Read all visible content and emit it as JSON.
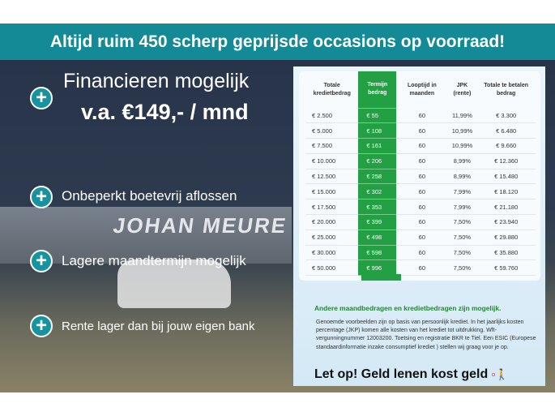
{
  "banner": "Altijd ruim 450 scherp geprijsde occasions op voorraad!",
  "headline": {
    "line1": "Financieren mogelijk",
    "line2": "v.a. €149,- / mnd"
  },
  "benefits": [
    "Onbeperkt boetevrij aflossen",
    "Lagere maandtermijn mogelijk",
    "Rente lager dan bij jouw eigen bank"
  ],
  "photo_sign": "JOHAN MEURE",
  "table": {
    "headers": [
      "Totale kredietbedrag",
      "Termijn bedrag",
      "Looptijd in maanden",
      "JPK (rente)",
      "Totale te betalen bedrag"
    ],
    "rows": [
      [
        "€ 2.500",
        "€ 55",
        "60",
        "11,99%",
        "€ 3.300"
      ],
      [
        "€ 5.000",
        "€ 108",
        "60",
        "10,99%",
        "€ 6.480"
      ],
      [
        "€ 7.500",
        "€ 161",
        "60",
        "10,99%",
        "€ 9.660"
      ],
      [
        "€ 10.000",
        "€ 206",
        "60",
        "8,99%",
        "€ 12.360"
      ],
      [
        "€ 12.500",
        "€ 258",
        "60",
        "8,99%",
        "€ 15.480"
      ],
      [
        "€ 15.000",
        "€ 302",
        "60",
        "7,99%",
        "€ 18.120"
      ],
      [
        "€ 17.500",
        "€ 353",
        "60",
        "7,99%",
        "€ 21.180"
      ],
      [
        "€ 20.000",
        "€ 399",
        "60",
        "7,50%",
        "€ 23.940"
      ],
      [
        "€ 25.000",
        "€ 498",
        "60",
        "7,50%",
        "€ 29.880"
      ],
      [
        "€ 30.000",
        "€ 598",
        "60",
        "7,50%",
        "€ 35.880"
      ],
      [
        "€ 50.000",
        "€ 996",
        "60",
        "7,50%",
        "€ 59.760"
      ]
    ]
  },
  "subheading": "Andere maandbedragen en kredietbedragen zijn mogelijk.",
  "fineprint": "Genoemde voorbeelden zijn op basis van persoonlijk krediet. In het jaarlijks kosten percentage (JKP) komen alle kosten van het krediet tot uitdrukking. Wft-vergunningnummer 12003200. Toetsing en registratie BKR te Tiel. Een ESIC (Europese standaardinformatie inzake consumptief krediet ) stellen wij graag voor je op.",
  "warning": "Let op! Geld lenen kost geld",
  "colors": {
    "teal": "#138a96",
    "green": "#22a043"
  }
}
